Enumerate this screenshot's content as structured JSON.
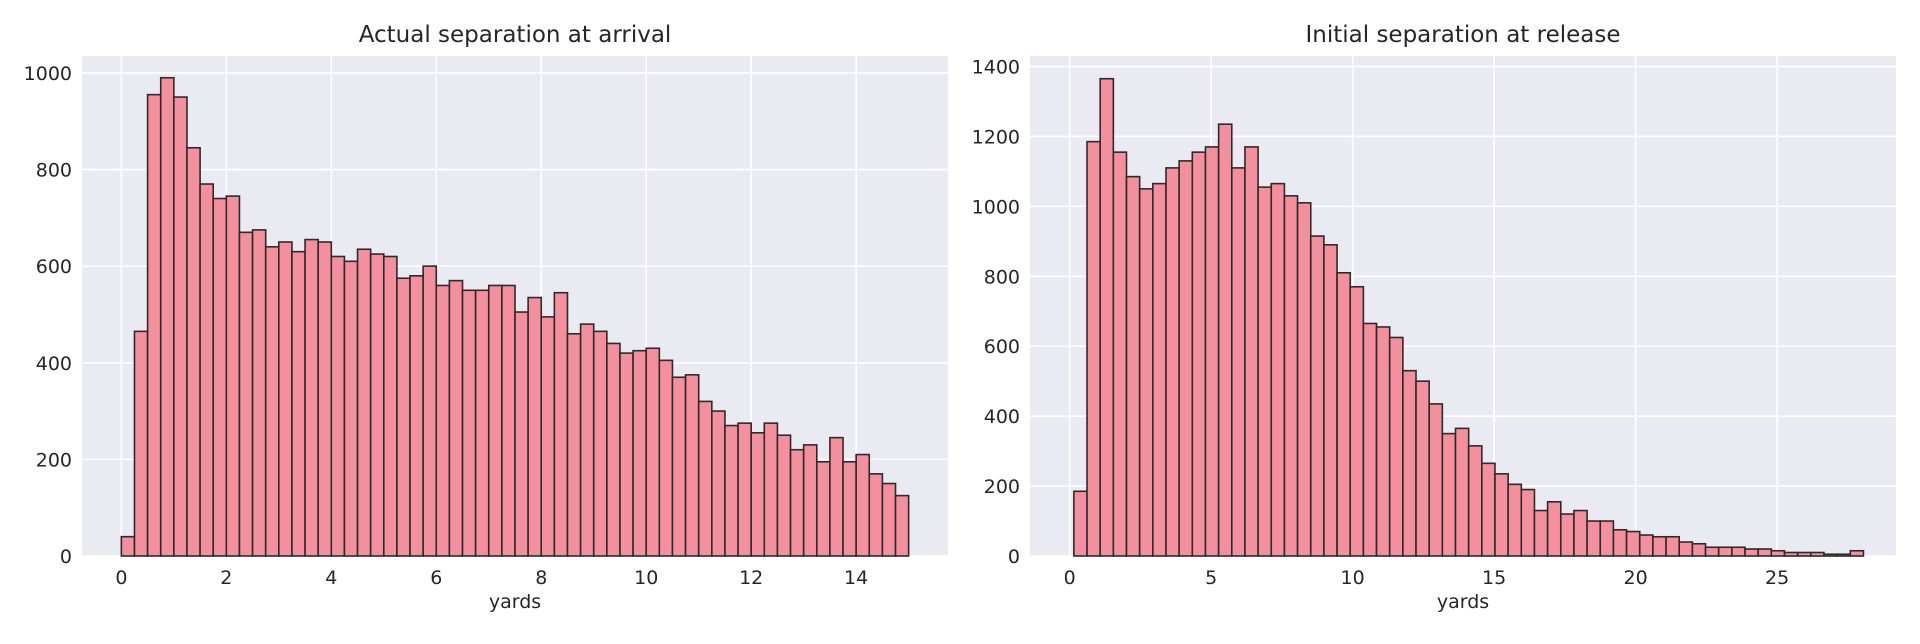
{
  "chart_data": [
    {
      "type": "bar",
      "title": "Actual separation at arrival",
      "xlabel": "yards",
      "ylabel": "",
      "xlim": [
        -0.75,
        15.75
      ],
      "ylim": [
        0,
        1035
      ],
      "xticks": [
        0,
        2,
        4,
        6,
        8,
        10,
        12,
        14
      ],
      "yticks": [
        0,
        200,
        400,
        600,
        800,
        1000
      ],
      "grid": true,
      "bin_start": 0,
      "bin_width": 0.25,
      "values": [
        40,
        465,
        955,
        990,
        950,
        845,
        770,
        740,
        745,
        670,
        675,
        640,
        650,
        630,
        655,
        650,
        620,
        610,
        635,
        625,
        620,
        575,
        580,
        600,
        560,
        570,
        550,
        550,
        560,
        560,
        505,
        535,
        495,
        545,
        460,
        480,
        465,
        440,
        420,
        425,
        430,
        405,
        370,
        375,
        320,
        300,
        270,
        275,
        255,
        275,
        250,
        220,
        230,
        195,
        245,
        195,
        210,
        170,
        150,
        125
      ],
      "bar_color": "#f4909e",
      "edge_color": "#2b2b2b"
    },
    {
      "type": "bar",
      "title": "Initial separation at release",
      "xlabel": "yards",
      "ylabel": "",
      "xlim": [
        -1.4,
        29.2
      ],
      "ylim": [
        0,
        1430
      ],
      "xticks": [
        0,
        5,
        10,
        15,
        20,
        25
      ],
      "yticks": [
        0,
        200,
        400,
        600,
        800,
        1000,
        1200,
        1400
      ],
      "grid": true,
      "bin_start": 0.15,
      "bin_width": 0.465,
      "values": [
        185,
        1185,
        1365,
        1155,
        1085,
        1050,
        1065,
        1110,
        1130,
        1155,
        1170,
        1235,
        1110,
        1170,
        1055,
        1065,
        1030,
        1010,
        915,
        890,
        810,
        770,
        665,
        655,
        625,
        530,
        500,
        435,
        350,
        365,
        315,
        265,
        235,
        205,
        190,
        130,
        155,
        120,
        130,
        100,
        100,
        75,
        70,
        60,
        55,
        55,
        40,
        35,
        25,
        25,
        25,
        20,
        20,
        15,
        10,
        10,
        10,
        5,
        5,
        15
      ],
      "bar_color": "#f4909e",
      "edge_color": "#2b2b2b"
    }
  ]
}
